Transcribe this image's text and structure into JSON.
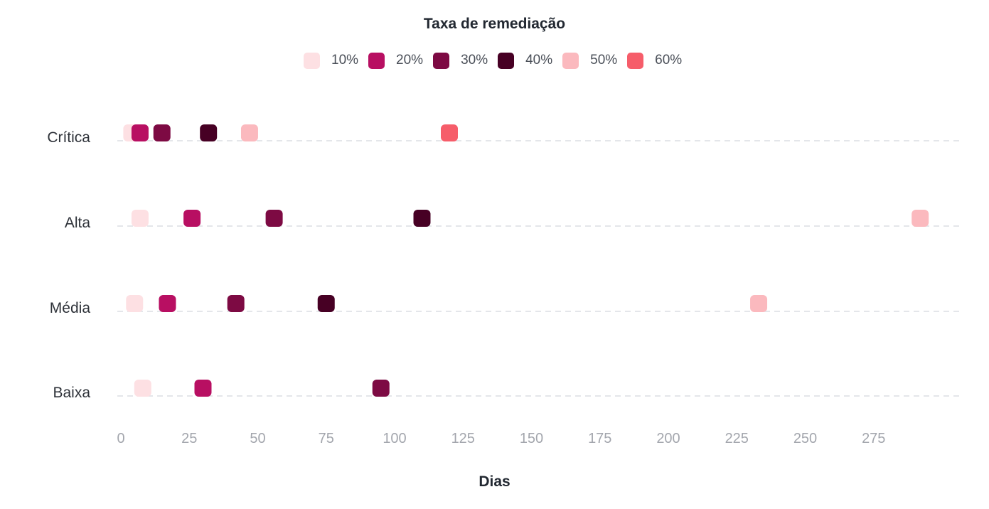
{
  "chart_data": {
    "type": "scatter",
    "legend_title": "Taxa de remediação",
    "legend_placement": "top-center",
    "xlabel": "Dias",
    "ylabel": "",
    "xlim": [
      0,
      300
    ],
    "x_ticks": [
      "0",
      "25",
      "50",
      "75",
      "100",
      "125",
      "150",
      "175",
      "200",
      "225",
      "250",
      "275"
    ],
    "categories": [
      "Crítica",
      "Alta",
      "Média",
      "Baixa"
    ],
    "grid": "horizontal-dashed",
    "series": [
      {
        "name": "10%",
        "color": "#fde0e3",
        "values": [
          4,
          7,
          5,
          8
        ]
      },
      {
        "name": "20%",
        "color": "#b80f62",
        "values": [
          7,
          26,
          17,
          30
        ]
      },
      {
        "name": "30%",
        "color": "#7d0a43",
        "values": [
          15,
          56,
          42,
          95
        ]
      },
      {
        "name": "40%",
        "color": "#470024",
        "values": [
          32,
          110,
          75,
          null
        ]
      },
      {
        "name": "50%",
        "color": "#fbb9be",
        "values": [
          47,
          292,
          233,
          null
        ]
      },
      {
        "name": "60%",
        "color": "#f65d6a",
        "values": [
          120,
          null,
          null,
          null
        ]
      }
    ]
  }
}
